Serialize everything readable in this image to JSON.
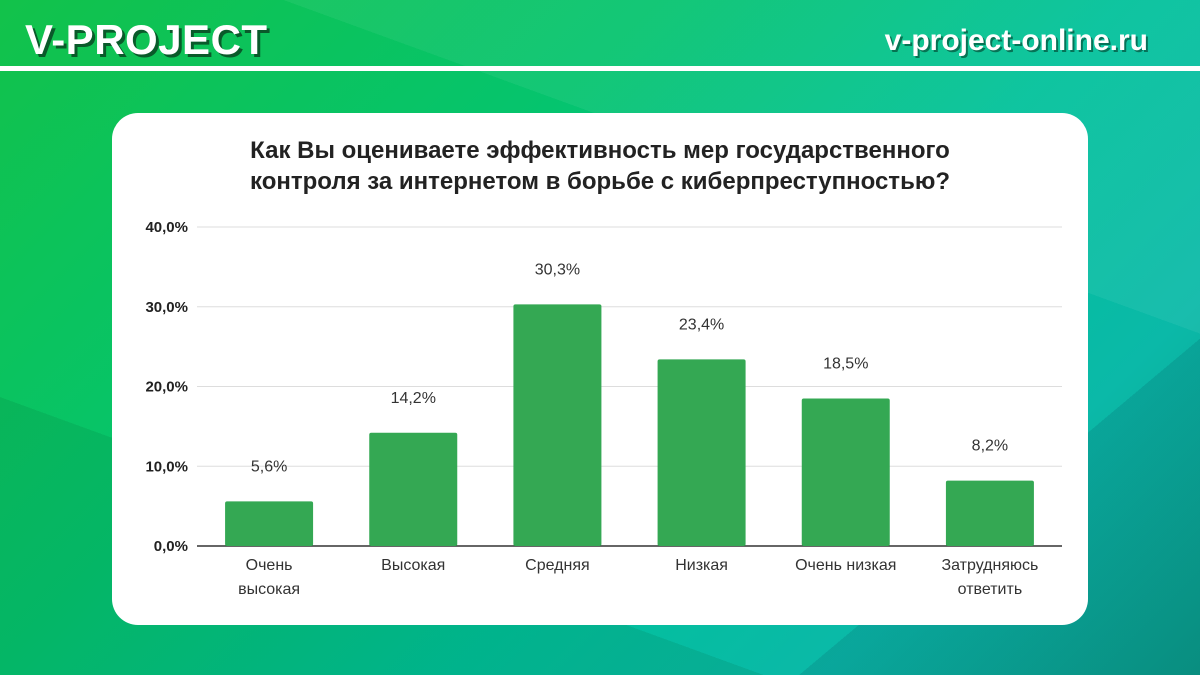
{
  "header": {
    "logo": "V-PROJECT",
    "site": "v-project-online.ru"
  },
  "chart_data": {
    "type": "bar",
    "title": "Как Вы оцениваете эффективность мер государственного контроля за интернетом в борьбе с киберпреступностью?",
    "title_lines": [
      "Как Вы оцениваете эффективность мер государственного",
      "контроля за интернетом в борьбе с киберпреступностью?"
    ],
    "categories": [
      [
        "Очень",
        "высокая"
      ],
      [
        "Высокая"
      ],
      [
        "Средняя"
      ],
      [
        "Низкая"
      ],
      [
        "Очень низкая"
      ],
      [
        "Затрудняюсь",
        "ответить"
      ]
    ],
    "values": [
      5.6,
      14.2,
      30.3,
      23.4,
      18.5,
      8.2
    ],
    "data_labels": [
      "5,6%",
      "14,2%",
      "30,3%",
      "23,4%",
      "18,5%",
      "8,2%"
    ],
    "yticks": [
      0,
      10,
      20,
      30,
      40
    ],
    "ytick_labels": [
      "0,0%",
      "10,0%",
      "20,0%",
      "30,0%",
      "40,0%"
    ],
    "ylim": [
      0,
      40
    ],
    "grid": true,
    "bar_color": "#34a853",
    "xlabel": "",
    "ylabel": ""
  }
}
